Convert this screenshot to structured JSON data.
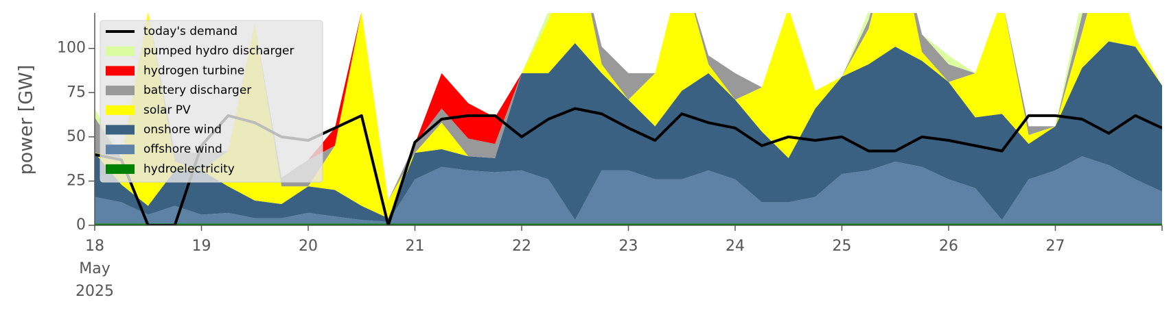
{
  "chart_data": {
    "type": "area",
    "y_label": "power [GW]",
    "x": [
      "2025-05-18T00:00",
      "2025-05-18T06:00",
      "2025-05-18T12:00",
      "2025-05-18T18:00",
      "2025-05-19T00:00",
      "2025-05-19T06:00",
      "2025-05-19T12:00",
      "2025-05-19T18:00",
      "2025-05-20T00:00",
      "2025-05-20T06:00",
      "2025-05-20T12:00",
      "2025-05-20T18:00",
      "2025-05-21T00:00",
      "2025-05-21T06:00",
      "2025-05-21T12:00",
      "2025-05-21T18:00",
      "2025-05-22T00:00",
      "2025-05-22T06:00",
      "2025-05-22T12:00",
      "2025-05-22T18:00",
      "2025-05-23T00:00",
      "2025-05-23T06:00",
      "2025-05-23T12:00",
      "2025-05-23T18:00",
      "2025-05-24T00:00",
      "2025-05-24T06:00",
      "2025-05-24T12:00",
      "2025-05-24T18:00",
      "2025-05-25T00:00",
      "2025-05-25T06:00",
      "2025-05-25T12:00",
      "2025-05-25T18:00",
      "2025-05-26T00:00",
      "2025-05-26T06:00",
      "2025-05-26T12:00",
      "2025-05-26T18:00",
      "2025-05-27T00:00",
      "2025-05-27T06:00",
      "2025-05-27T12:00",
      "2025-05-27T18:00",
      "2025-05-28T00:00"
    ],
    "xlim": [
      "2025-05-18T00:00",
      "2025-05-28T00:00"
    ],
    "xticks": [
      {
        "value": "2025-05-18T00:00",
        "label": "18\nMay\n2025"
      },
      {
        "value": "2025-05-19T00:00",
        "label": "19"
      },
      {
        "value": "2025-05-20T00:00",
        "label": "20"
      },
      {
        "value": "2025-05-21T00:00",
        "label": "21"
      },
      {
        "value": "2025-05-22T00:00",
        "label": "22"
      },
      {
        "value": "2025-05-23T00:00",
        "label": "23"
      },
      {
        "value": "2025-05-24T00:00",
        "label": "24"
      },
      {
        "value": "2025-05-25T00:00",
        "label": "25"
      },
      {
        "value": "2025-05-26T00:00",
        "label": "26"
      },
      {
        "value": "2025-05-27T00:00",
        "label": "27"
      }
    ],
    "ylim": [
      0,
      120
    ],
    "yticks": [
      0,
      25,
      50,
      75,
      100
    ],
    "legend": "upper left",
    "series": [
      {
        "name": "today's demand",
        "kind": "line",
        "color": "#000000",
        "values": [
          40,
          37,
          0,
          0,
          45,
          62,
          58,
          50,
          48,
          55,
          62,
          0,
          47,
          60,
          62,
          62,
          50,
          60,
          66,
          63,
          55,
          48,
          63,
          58,
          55,
          45,
          50,
          48,
          50,
          42,
          42,
          50,
          48,
          45,
          42,
          62,
          62,
          60,
          52,
          62,
          55
        ]
      },
      {
        "name": "pumped hydro discharger",
        "kind": "area",
        "color": "#dcfca0",
        "values": [
          5,
          0,
          0,
          0,
          0,
          0,
          0,
          0,
          0,
          0,
          0,
          0,
          0,
          0,
          0,
          0,
          0,
          5,
          0,
          0,
          0,
          0,
          0,
          0,
          0,
          0,
          0,
          0,
          0,
          5,
          0,
          0,
          5,
          0,
          0,
          0,
          0,
          10,
          0,
          0,
          0
        ]
      },
      {
        "name": "hydrogen turbine",
        "kind": "area",
        "color": "#ff0000",
        "values": [
          0,
          0,
          0,
          0,
          0,
          0,
          0,
          0,
          0,
          10,
          0,
          0,
          0,
          20,
          20,
          15,
          0,
          0,
          0,
          0,
          0,
          0,
          0,
          0,
          0,
          0,
          0,
          0,
          0,
          0,
          0,
          0,
          0,
          0,
          0,
          0,
          0,
          0,
          0,
          0,
          0
        ]
      },
      {
        "name": "battery discharger",
        "kind": "area",
        "color": "#999999",
        "values": [
          20,
          0,
          0,
          5,
          10,
          0,
          0,
          5,
          15,
          0,
          0,
          0,
          5,
          8,
          10,
          8,
          0,
          0,
          0,
          10,
          15,
          0,
          0,
          5,
          15,
          0,
          0,
          0,
          0,
          5,
          0,
          10,
          10,
          0,
          0,
          5,
          0,
          10,
          0,
          0,
          0
        ]
      },
      {
        "name": "solar PV",
        "kind": "area",
        "color": "#ffff00",
        "values": [
          0,
          15,
          110,
          5,
          0,
          20,
          100,
          10,
          0,
          25,
          110,
          10,
          0,
          15,
          0,
          0,
          0,
          30,
          60,
          5,
          0,
          30,
          70,
          5,
          0,
          25,
          85,
          10,
          0,
          20,
          70,
          5,
          0,
          25,
          65,
          5,
          0,
          20,
          60,
          5,
          0
        ]
      },
      {
        "name": "onshore wind",
        "kind": "area",
        "color": "#3b6182",
        "values": [
          25,
          10,
          5,
          20,
          25,
          15,
          10,
          8,
          15,
          15,
          8,
          2,
          15,
          10,
          8,
          8,
          55,
          60,
          100,
          55,
          40,
          30,
          50,
          55,
          45,
          40,
          25,
          50,
          55,
          60,
          65,
          60,
          55,
          40,
          60,
          20,
          25,
          50,
          70,
          75,
          60
        ]
      },
      {
        "name": "offshore wind",
        "kind": "area",
        "color": "#5d82a5",
        "values": [
          15,
          12,
          5,
          10,
          5,
          6,
          3,
          3,
          6,
          4,
          2,
          1,
          25,
          32,
          30,
          29,
          30,
          25,
          2,
          30,
          30,
          25,
          25,
          30,
          25,
          12,
          12,
          15,
          28,
          30,
          35,
          32,
          25,
          20,
          2,
          25,
          30,
          38,
          33,
          25,
          18
        ]
      },
      {
        "name": "hydroelectricity",
        "kind": "area",
        "color": "#008000",
        "values": [
          1,
          1,
          1,
          1,
          1,
          1,
          1,
          1,
          1,
          1,
          1,
          1,
          1,
          1,
          1,
          1,
          1,
          1,
          1,
          1,
          1,
          1,
          1,
          1,
          1,
          1,
          1,
          1,
          1,
          1,
          1,
          1,
          1,
          1,
          1,
          1,
          1,
          1,
          1,
          1,
          1
        ]
      }
    ]
  }
}
